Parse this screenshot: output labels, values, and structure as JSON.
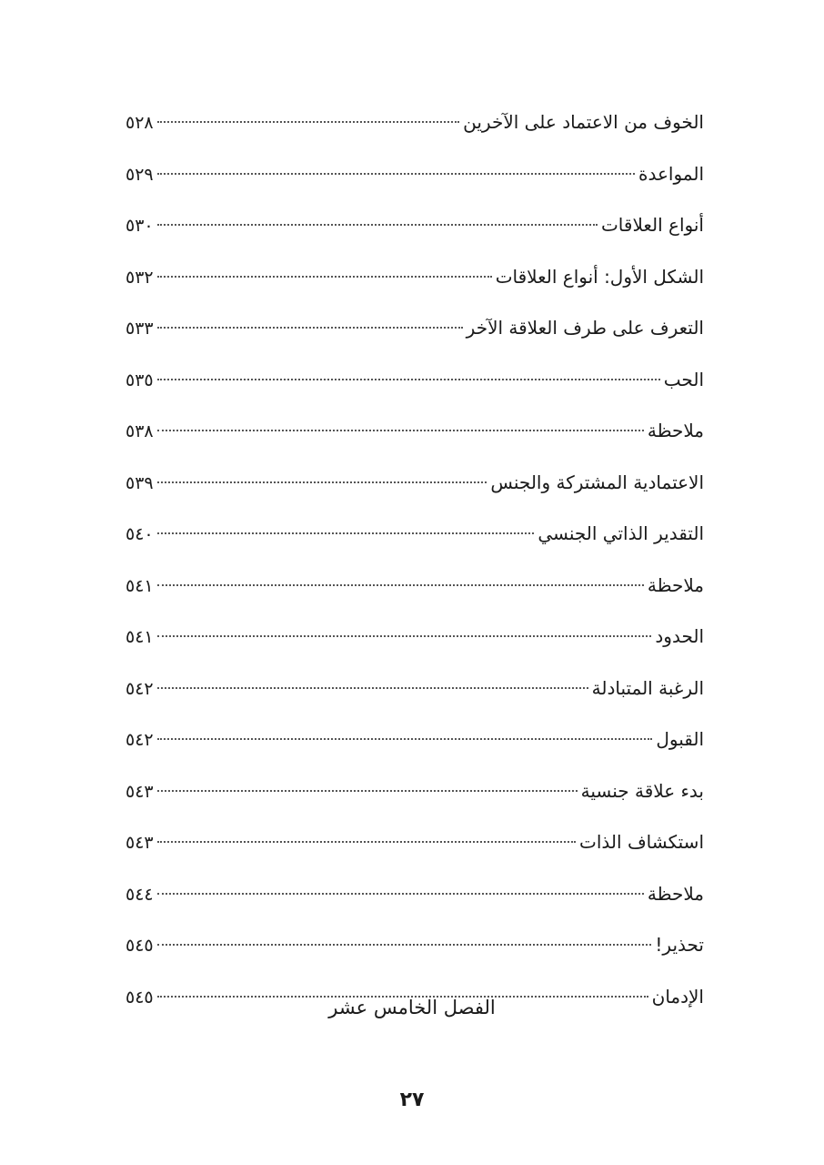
{
  "toc": [
    {
      "title": "الخوف من الاعتماد على الآخرين",
      "page": "٥٢٨"
    },
    {
      "title": "المواعدة",
      "page": "٥٢٩"
    },
    {
      "title": "أنواع العلاقات",
      "page": "٥٣٠"
    },
    {
      "title": "الشكل الأول: أنواع العلاقات",
      "page": "٥٣٢"
    },
    {
      "title": "التعرف على طرف العلاقة الآخر",
      "page": "٥٣٣"
    },
    {
      "title": "الحب",
      "page": "٥٣٥"
    },
    {
      "title": "ملاحظة",
      "page": "٥٣٨"
    },
    {
      "title": "الاعتمادية المشتركة والجنس",
      "page": "٥٣٩"
    },
    {
      "title": "التقدير الذاتي الجنسي",
      "page": "٥٤٠"
    },
    {
      "title": "ملاحظة",
      "page": "٥٤١"
    },
    {
      "title": "الحدود",
      "page": "٥٤١"
    },
    {
      "title": "الرغبة المتبادلة",
      "page": "٥٤٢"
    },
    {
      "title": "القبول",
      "page": "٥٤٢"
    },
    {
      "title": "بدء علاقة جنسية",
      "page": "٥٤٣"
    },
    {
      "title": "استكشاف الذات",
      "page": "٥٤٣"
    },
    {
      "title": "ملاحظة",
      "page": "٥٤٤"
    },
    {
      "title": "تحذير!",
      "page": "٥٤٥"
    },
    {
      "title": "الإدمان",
      "page": "٥٤٥"
    }
  ],
  "chapter_heading": "الفصل الخامس عشر",
  "page_number": "٢٧"
}
